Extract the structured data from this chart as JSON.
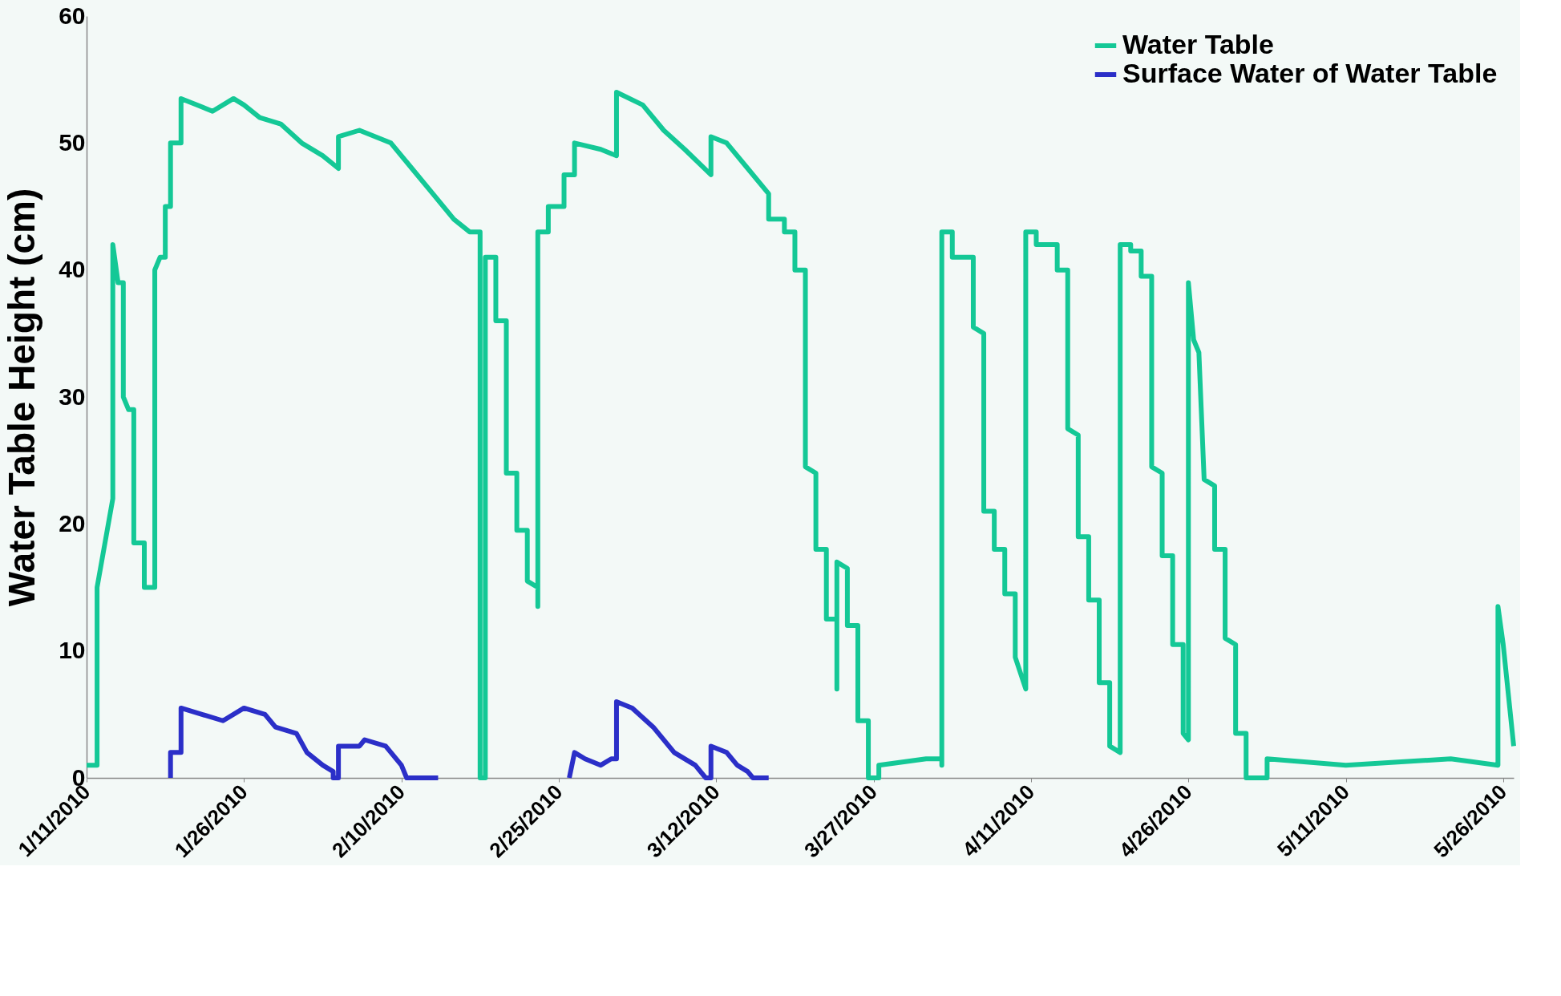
{
  "chart_data": {
    "type": "line",
    "ylabel": "Water Table Height (cm)",
    "ylim": [
      0,
      60
    ],
    "yticks": [
      0,
      10,
      20,
      30,
      40,
      50,
      60
    ],
    "xlim": [
      "2010-01-11",
      "2010-05-27"
    ],
    "xticks": [
      {
        "value": "2010-01-11",
        "label": "1/11/2010"
      },
      {
        "value": "2010-01-26",
        "label": "1/26/2010"
      },
      {
        "value": "2010-02-10",
        "label": "2/10/2010"
      },
      {
        "value": "2010-02-25",
        "label": "2/25/2010"
      },
      {
        "value": "2010-03-12",
        "label": "3/12/2010"
      },
      {
        "value": "2010-03-27",
        "label": "3/27/2010"
      },
      {
        "value": "2010-04-11",
        "label": "4/11/2010"
      },
      {
        "value": "2010-04-26",
        "label": "4/26/2010"
      },
      {
        "value": "2010-05-11",
        "label": "5/11/2010"
      },
      {
        "value": "2010-05-26",
        "label": "5/26/2010"
      }
    ],
    "grid": false,
    "legend": "top right",
    "series": [
      {
        "name": "Water Table",
        "color": "#14c896",
        "x": [
          "2010-01-11",
          "2010-01-12",
          "2010-01-12",
          "2010-01-13T12:00",
          "2010-01-13T12:00",
          "2010-01-14",
          "2010-01-14T12:00",
          "2010-01-14T12:00",
          "2010-01-15",
          "2010-01-15T12:00",
          "2010-01-15T12:00",
          "2010-01-16T12:00",
          "2010-01-16T12:00",
          "2010-01-17",
          "2010-01-17T12:00",
          "2010-01-17T12:00",
          "2010-01-18",
          "2010-01-18T12:00",
          "2010-01-18T12:00",
          "2010-01-19",
          "2010-01-19",
          "2010-01-20",
          "2010-01-20",
          "2010-01-21T12:00",
          "2010-01-23",
          "2010-01-25",
          "2010-01-26",
          "2010-01-27T12:00",
          "2010-01-29T12:00",
          "2010-01-31T12:00",
          "2010-02-02T12:00",
          "2010-02-04",
          "2010-02-04",
          "2010-02-06",
          "2010-02-09",
          "2010-02-11",
          "2010-02-13",
          "2010-02-15",
          "2010-02-16T12:00",
          "2010-02-17T12:00",
          "2010-02-17T12:00",
          "2010-02-18",
          "2010-02-18",
          "2010-02-19",
          "2010-02-19",
          "2010-02-20",
          "2010-02-20",
          "2010-02-21",
          "2010-02-21",
          "2010-02-22",
          "2010-02-22",
          "2010-02-23",
          "2010-02-23",
          "2010-02-23",
          "2010-02-24",
          "2010-02-24",
          "2010-02-25T12:00",
          "2010-02-25T12:00",
          "2010-02-26T12:00",
          "2010-02-26T12:00",
          "2010-03-01",
          "2010-03-02T12:00",
          "2010-03-02T12:00",
          "2010-03-05",
          "2010-03-07",
          "2010-03-09",
          "2010-03-11T12:00",
          "2010-03-11T12:00",
          "2010-03-13",
          "2010-03-15",
          "2010-03-17",
          "2010-03-17",
          "2010-03-18T12:00",
          "2010-03-18T12:00",
          "2010-03-19T12:00",
          "2010-03-19T12:00",
          "2010-03-20T12:00",
          "2010-03-20T12:00",
          "2010-03-21T12:00",
          "2010-03-21T12:00",
          "2010-03-22T12:00",
          "2010-03-22T12:00",
          "2010-03-23T12:00",
          "2010-03-23T12:00",
          "2010-03-23T12:00",
          "2010-03-24T12:00",
          "2010-03-24T12:00",
          "2010-03-25T12:00",
          "2010-03-25T12:00",
          "2010-03-26T12:00",
          "2010-03-26T12:00",
          "2010-03-27T12:00",
          "2010-03-27T12:00",
          "2010-04-01",
          "2010-04-02T12:00",
          "2010-04-02T12:00",
          "2010-04-02T12:00",
          "2010-04-03T12:00",
          "2010-04-03T12:00",
          "2010-04-05T12:00",
          "2010-04-05T12:00",
          "2010-04-06T12:00",
          "2010-04-06T12:00",
          "2010-04-07T12:00",
          "2010-04-07T12:00",
          "2010-04-08T12:00",
          "2010-04-08T12:00",
          "2010-04-09T12:00",
          "2010-04-09T12:00",
          "2010-04-10T12:00",
          "2010-04-10T12:00",
          "2010-04-11T12:00",
          "2010-04-11T12:00",
          "2010-04-13T12:00",
          "2010-04-13T12:00",
          "2010-04-14T12:00",
          "2010-04-14T12:00",
          "2010-04-15T12:00",
          "2010-04-15T12:00",
          "2010-04-16T12:00",
          "2010-04-16T12:00",
          "2010-04-17T12:00",
          "2010-04-17T12:00",
          "2010-04-18T12:00",
          "2010-04-18T12:00",
          "2010-04-19T12:00",
          "2010-04-19T12:00",
          "2010-04-20T12:00",
          "2010-04-20T12:00",
          "2010-04-21T12:00",
          "2010-04-21T12:00",
          "2010-04-22T12:00",
          "2010-04-22T12:00",
          "2010-04-23T12:00",
          "2010-04-23T12:00",
          "2010-04-24T12:00",
          "2010-04-24T12:00",
          "2010-04-25T12:00",
          "2010-04-25T12:00",
          "2010-04-26",
          "2010-04-26",
          "2010-04-26T12:00",
          "2010-04-27",
          "2010-04-27T12:00",
          "2010-04-28T12:00",
          "2010-04-28T12:00",
          "2010-04-29T12:00",
          "2010-04-29T12:00",
          "2010-04-30T12:00",
          "2010-04-30T12:00",
          "2010-05-01T12:00",
          "2010-05-01T12:00",
          "2010-05-03T12:00",
          "2010-05-03T12:00",
          "2010-05-11",
          "2010-05-21",
          "2010-05-25T12:00",
          "2010-05-25T12:00",
          "2010-05-26",
          "2010-05-27"
        ],
        "values": [
          1,
          1,
          15,
          22,
          42,
          39,
          39,
          30,
          29,
          29,
          18.5,
          18.5,
          15,
          15,
          15,
          40,
          41,
          41,
          45,
          45,
          50,
          50,
          53.5,
          53,
          52.5,
          53.5,
          53,
          52,
          51.5,
          50,
          49,
          48,
          50.5,
          51,
          50,
          48,
          46,
          44,
          43,
          43,
          0,
          0,
          41,
          41,
          36,
          36,
          24,
          24,
          19.5,
          19.5,
          15.5,
          15,
          13.5,
          43,
          43,
          45,
          45,
          47.5,
          47.5,
          50,
          49.5,
          49,
          54,
          53,
          51,
          49.5,
          47.5,
          50.5,
          50,
          48,
          46,
          44,
          44,
          43,
          43,
          40,
          40,
          24.5,
          24,
          18,
          18,
          12.5,
          12.5,
          7,
          17,
          16.5,
          12,
          12,
          4.5,
          4.5,
          0,
          0,
          1,
          1.5,
          1.5,
          1,
          43,
          43,
          41,
          41,
          35.5,
          35,
          21,
          21,
          18,
          18,
          14.5,
          14.5,
          9.5,
          7,
          43,
          43,
          42,
          42,
          40,
          40,
          27.5,
          27,
          19,
          19,
          14,
          14,
          7.5,
          7.5,
          2.5,
          2,
          42,
          42,
          41.5,
          41.5,
          39.5,
          39.5,
          24.5,
          24,
          17.5,
          17.5,
          10.5,
          10.5,
          3.5,
          3,
          39,
          34.5,
          33.5,
          23.5,
          23,
          18,
          18,
          11,
          10.5,
          3.5,
          3.5,
          0,
          0,
          1.5,
          1,
          1.5,
          1,
          13.5,
          10.5,
          2.5
        ]
      },
      {
        "name": "Surface Water of Water Table",
        "color": "#2b2fc8",
        "x": [
          "2010-01-19",
          "2010-01-19",
          "2010-01-20",
          "2010-01-20",
          "2010-01-22",
          "2010-01-24",
          "2010-01-26",
          "2010-01-28",
          "2010-01-29",
          "2010-01-31",
          "2010-02-01",
          "2010-02-02T12:00",
          "2010-02-03T12:00",
          "2010-02-03T12:00",
          "2010-02-04",
          "2010-02-04",
          "2010-02-06",
          "2010-02-06T12:00",
          "2010-02-08T12:00",
          "2010-02-10",
          "2010-02-10T12:00",
          "2010-02-13T12:00",
          "2010-02-20",
          "2010-02-26",
          "2010-02-26T12:00",
          "2010-02-27T12:00",
          "2010-03-01",
          "2010-03-02",
          "2010-03-02T12:00",
          "2010-03-02T12:00",
          "2010-03-04",
          "2010-03-06",
          "2010-03-08",
          "2010-03-10",
          "2010-03-11",
          "2010-03-11T12:00",
          "2010-03-11T12:00",
          "2010-03-13",
          "2010-03-14",
          "2010-03-15",
          "2010-03-15T12:00",
          "2010-03-17"
        ],
        "values": [
          0,
          2,
          2,
          5.5,
          5,
          4.5,
          5.5,
          5,
          4,
          3.5,
          2,
          1,
          0.5,
          0,
          0,
          2.5,
          2.5,
          3,
          2.5,
          1,
          0,
          0,
          null,
          0,
          2,
          1.5,
          1,
          1.5,
          1.5,
          6,
          5.5,
          4,
          2,
          1,
          0,
          0,
          2.5,
          2,
          1,
          0.5,
          0,
          0
        ]
      }
    ]
  }
}
